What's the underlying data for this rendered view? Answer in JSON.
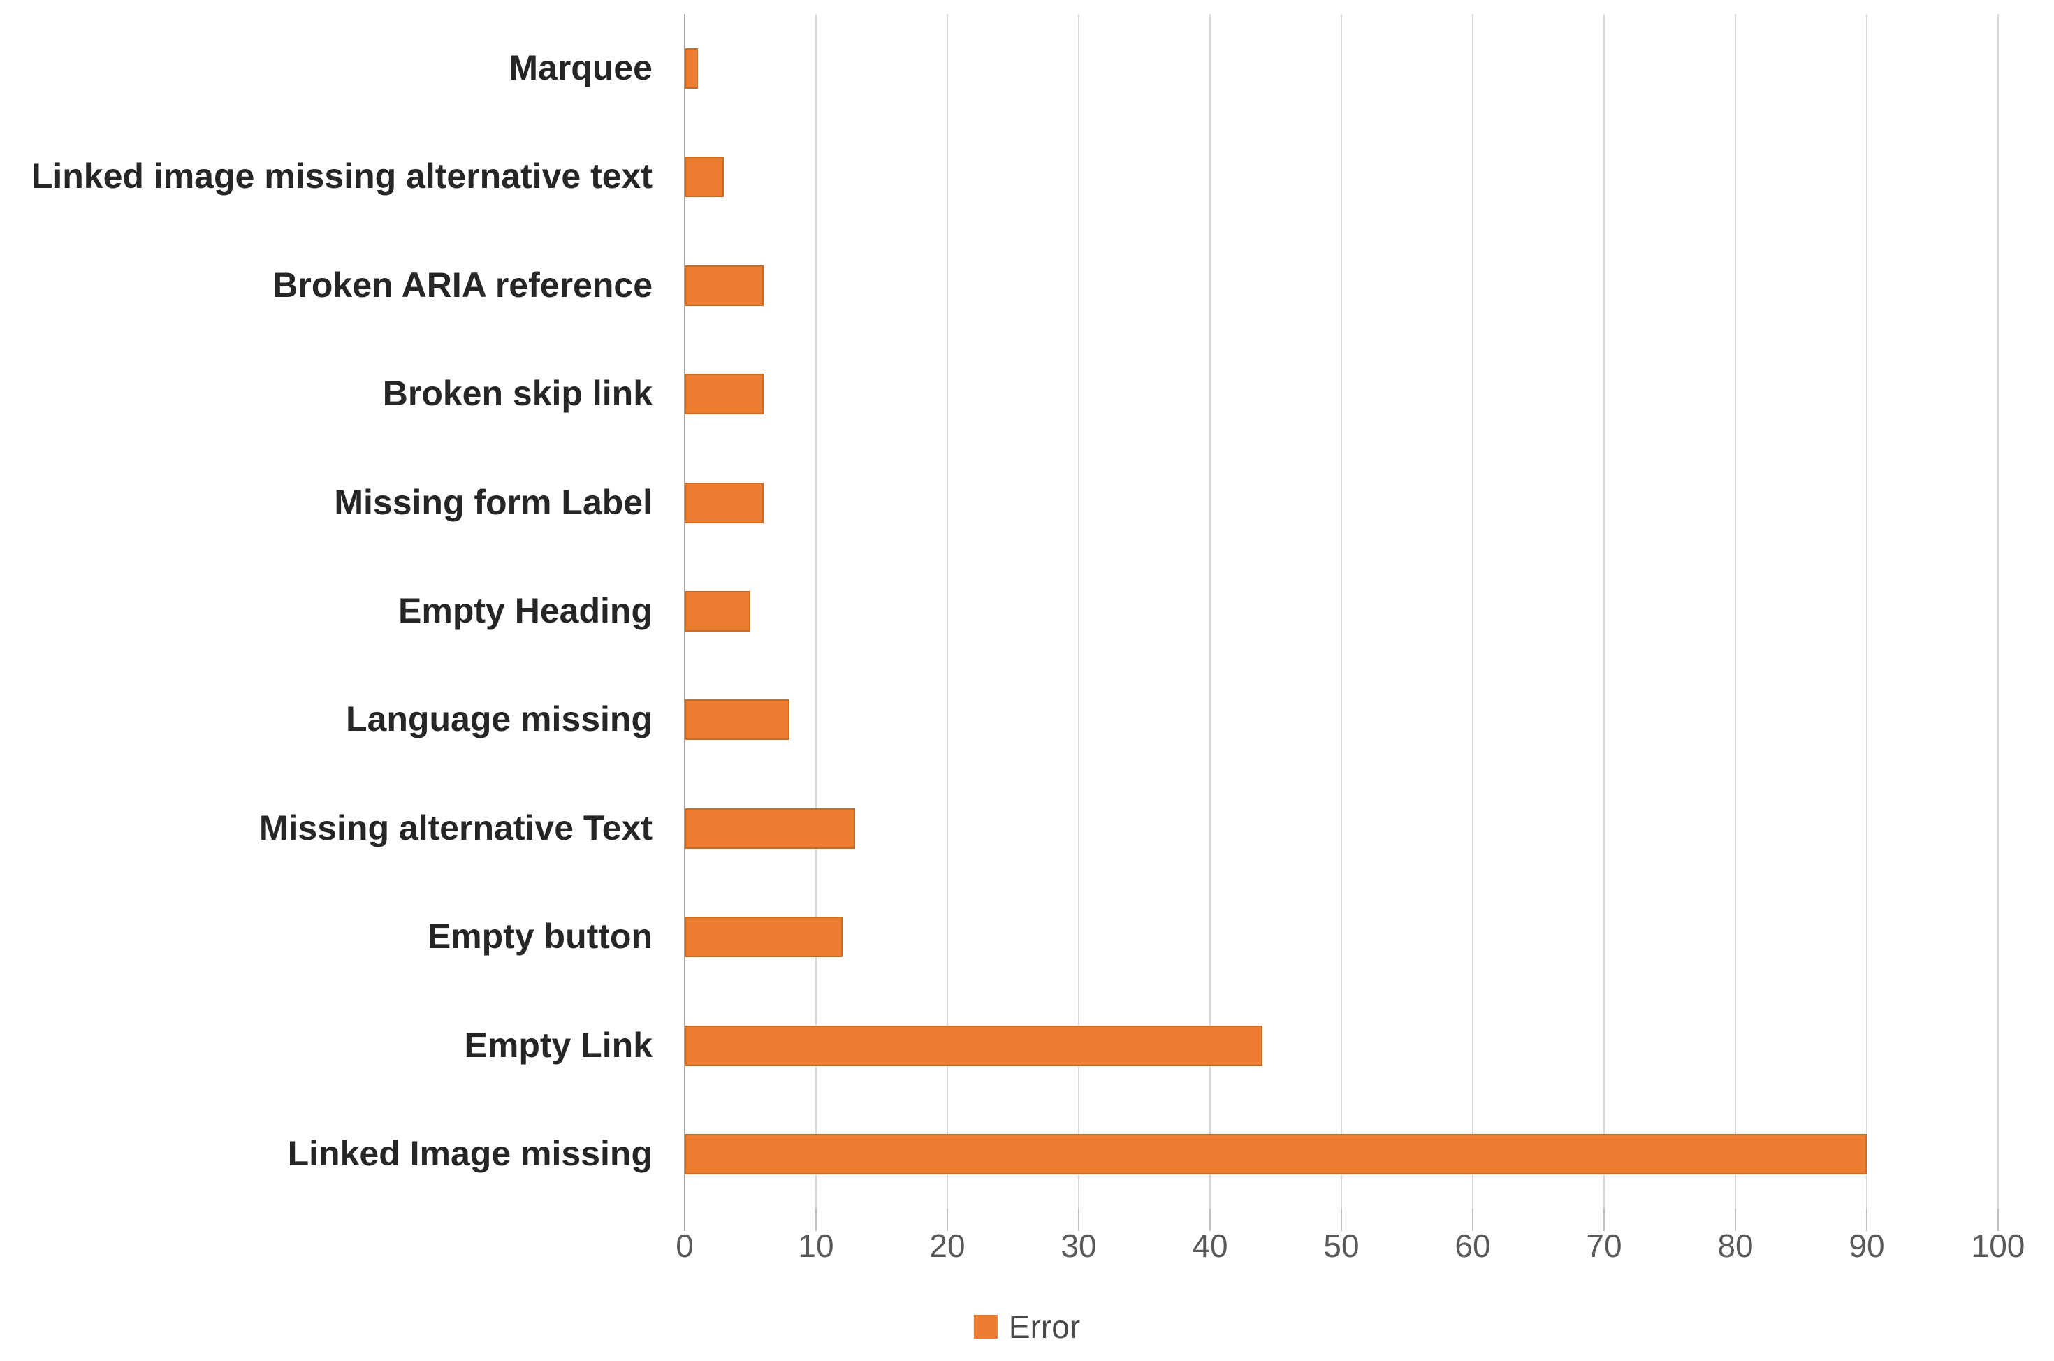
{
  "chart_data": {
    "type": "bar",
    "orientation": "horizontal",
    "title": "",
    "xlabel": "",
    "ylabel": "",
    "categories": [
      "Marquee",
      "Linked image missing alternative text",
      "Broken ARIA reference",
      "Broken skip link",
      "Missing form Label",
      "Empty Heading",
      "Language missing",
      "Missing alternative Text",
      "Empty button",
      "Empty Link",
      "Linked Image missing"
    ],
    "series": [
      {
        "name": "Error",
        "values": [
          1,
          3,
          6,
          6,
          6,
          5,
          8,
          13,
          12,
          44,
          90
        ]
      }
    ],
    "xlim": [
      0,
      100
    ],
    "x_ticks": [
      0,
      10,
      20,
      30,
      40,
      50,
      60,
      70,
      80,
      90,
      100
    ],
    "grid": "vertical-major",
    "legend_position": "bottom-center",
    "colors": {
      "bar_fill": "#ed7d31",
      "bar_edge": "#c86d28",
      "gridline": "#d9d9d9",
      "axis_line": "#a6a6a6",
      "category_text": "#262626",
      "tick_text": "#595959",
      "legend_text": "#4a4a4a",
      "background": "#ffffff"
    }
  },
  "legend": {
    "error_label": "Error"
  }
}
